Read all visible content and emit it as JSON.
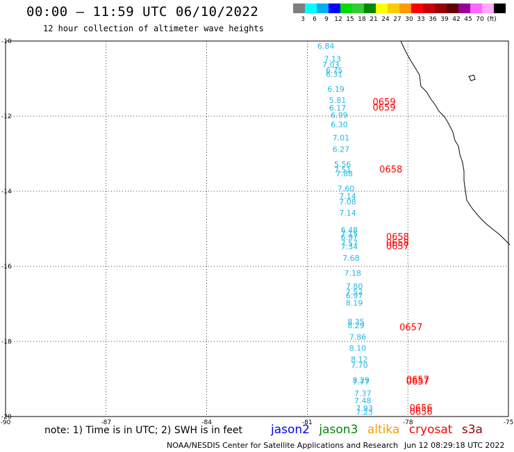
{
  "header": {
    "title": "00:00 – 11:59 UTC 06/10/2022",
    "subtitle": "12 hour collection of altimeter wave heights"
  },
  "colorbar": {
    "colors": [
      "#7f7f7f",
      "#00ffff",
      "#00b0f0",
      "#0000ff",
      "#00dd00",
      "#33cc33",
      "#008800",
      "#ffff00",
      "#ffcc00",
      "#ff9900",
      "#ff0000",
      "#cc0000",
      "#990000",
      "#660000",
      "#990099",
      "#ff66ff",
      "#ffaaff",
      "#000000"
    ],
    "labels": [
      "3",
      "6",
      "9",
      "12",
      "15",
      "18",
      "21",
      "24",
      "27",
      "30",
      "33",
      "36",
      "39",
      "42",
      "45",
      "70",
      "(ft)"
    ]
  },
  "axes": {
    "lat_labels": [
      "-10",
      "-12",
      "-14",
      "-16",
      "-18",
      "-20"
    ],
    "lon_labels": [
      "-90",
      "-87",
      "-84",
      "-81",
      "-78",
      "-75"
    ]
  },
  "swh_values": [
    {
      "v": "6.84",
      "lat": -10.2,
      "lon": -80.7
    },
    {
      "v": "7.13",
      "lat": -10.55,
      "lon": -80.5
    },
    {
      "v": "7.03",
      "lat": -10.7,
      "lon": -80.55
    },
    {
      "v": "6.75",
      "lat": -10.85,
      "lon": -80.45
    },
    {
      "v": "6.31",
      "lat": -10.95,
      "lon": -80.45
    },
    {
      "v": "6.19",
      "lat": -11.35,
      "lon": -80.4
    },
    {
      "v": "5.81",
      "lat": -11.65,
      "lon": -80.35
    },
    {
      "v": "6.17",
      "lat": -11.85,
      "lon": -80.35
    },
    {
      "v": "6.99",
      "lat": -12.05,
      "lon": -80.3
    },
    {
      "v": "6.30",
      "lat": -12.3,
      "lon": -80.3
    },
    {
      "v": "7.01",
      "lat": -12.65,
      "lon": -80.25
    },
    {
      "v": "6.27",
      "lat": -12.95,
      "lon": -80.25
    },
    {
      "v": "5.56",
      "lat": -13.35,
      "lon": -80.2
    },
    {
      "v": "7.51",
      "lat": -13.5,
      "lon": -80.2
    },
    {
      "v": "7.88",
      "lat": -13.6,
      "lon": -80.15
    },
    {
      "v": "7.60",
      "lat": -14.0,
      "lon": -80.1
    },
    {
      "v": "7.14",
      "lat": -14.2,
      "lon": -80.05
    },
    {
      "v": "7.08",
      "lat": -14.35,
      "lon": -80.05
    },
    {
      "v": "7.14",
      "lat": -14.65,
      "lon": -80.05
    },
    {
      "v": "6.48",
      "lat": -15.1,
      "lon": -80.0
    },
    {
      "v": "7.15",
      "lat": -15.2,
      "lon": -80.0
    },
    {
      "v": "6.97",
      "lat": -15.3,
      "lon": -80.0
    },
    {
      "v": "7.57",
      "lat": -15.45,
      "lon": -80.0
    },
    {
      "v": "7.34",
      "lat": -15.55,
      "lon": -80.0
    },
    {
      "v": "7.68",
      "lat": -15.85,
      "lon": -79.95
    },
    {
      "v": "7.18",
      "lat": -16.25,
      "lon": -79.9
    },
    {
      "v": "7.80",
      "lat": -16.6,
      "lon": -79.85
    },
    {
      "v": "7.52",
      "lat": -16.75,
      "lon": -79.85
    },
    {
      "v": "6.97",
      "lat": -16.85,
      "lon": -79.85
    },
    {
      "v": "8.19",
      "lat": -17.05,
      "lon": -79.85
    },
    {
      "v": "8.35",
      "lat": -17.55,
      "lon": -79.8
    },
    {
      "v": "8.29",
      "lat": -17.65,
      "lon": -79.8
    },
    {
      "v": "7.86",
      "lat": -17.95,
      "lon": -79.75
    },
    {
      "v": "8.10",
      "lat": -18.25,
      "lon": -79.75
    },
    {
      "v": "8.12",
      "lat": -18.55,
      "lon": -79.7
    },
    {
      "v": "7.70",
      "lat": -18.7,
      "lon": -79.7
    },
    {
      "v": "8.29",
      "lat": -19.1,
      "lon": -79.65
    },
    {
      "v": "7.77",
      "lat": -19.15,
      "lon": -79.65
    },
    {
      "v": "7.37",
      "lat": -19.45,
      "lon": -79.6
    },
    {
      "v": "7.48",
      "lat": -19.65,
      "lon": -79.6
    },
    {
      "v": "7.93",
      "lat": -19.85,
      "lon": -79.55
    },
    {
      "v": "7.23",
      "lat": -19.95,
      "lon": -79.55
    }
  ],
  "time_labels": [
    {
      "t": "0659",
      "lat": -11.7,
      "lon": -79.05
    },
    {
      "t": "0659",
      "lat": -11.85,
      "lon": -79.05
    },
    {
      "t": "0658",
      "lat": -13.5,
      "lon": -78.85
    },
    {
      "t": "0658",
      "lat": -15.3,
      "lon": -78.65
    },
    {
      "t": "0658",
      "lat": -15.45,
      "lon": -78.65
    },
    {
      "t": "0657",
      "lat": -15.55,
      "lon": -78.65
    },
    {
      "t": "0657",
      "lat": -17.7,
      "lon": -78.25
    },
    {
      "t": "0657",
      "lat": -19.1,
      "lon": -78.05
    },
    {
      "t": "0657",
      "lat": -19.15,
      "lon": -78.05
    },
    {
      "t": "0656",
      "lat": -19.85,
      "lon": -77.95
    },
    {
      "t": "0656",
      "lat": -19.95,
      "lon": -77.95
    }
  ],
  "note": "note: 1) Time is in UTC; 2) SWH is in feet",
  "legend": [
    {
      "label": "jason2",
      "color": "#0000ff"
    },
    {
      "label": "jason3",
      "color": "#008800"
    },
    {
      "label": "altika",
      "color": "#ff9900"
    },
    {
      "label": "cryosat",
      "color": "#ff0000"
    },
    {
      "label": "s3a",
      "color": "#990000"
    }
  ],
  "footer": {
    "credit": "NOAA/NESDIS Center for Satellite Applications and Research",
    "timestamp": "Jun 12 08:29:18 UTC 2022"
  }
}
